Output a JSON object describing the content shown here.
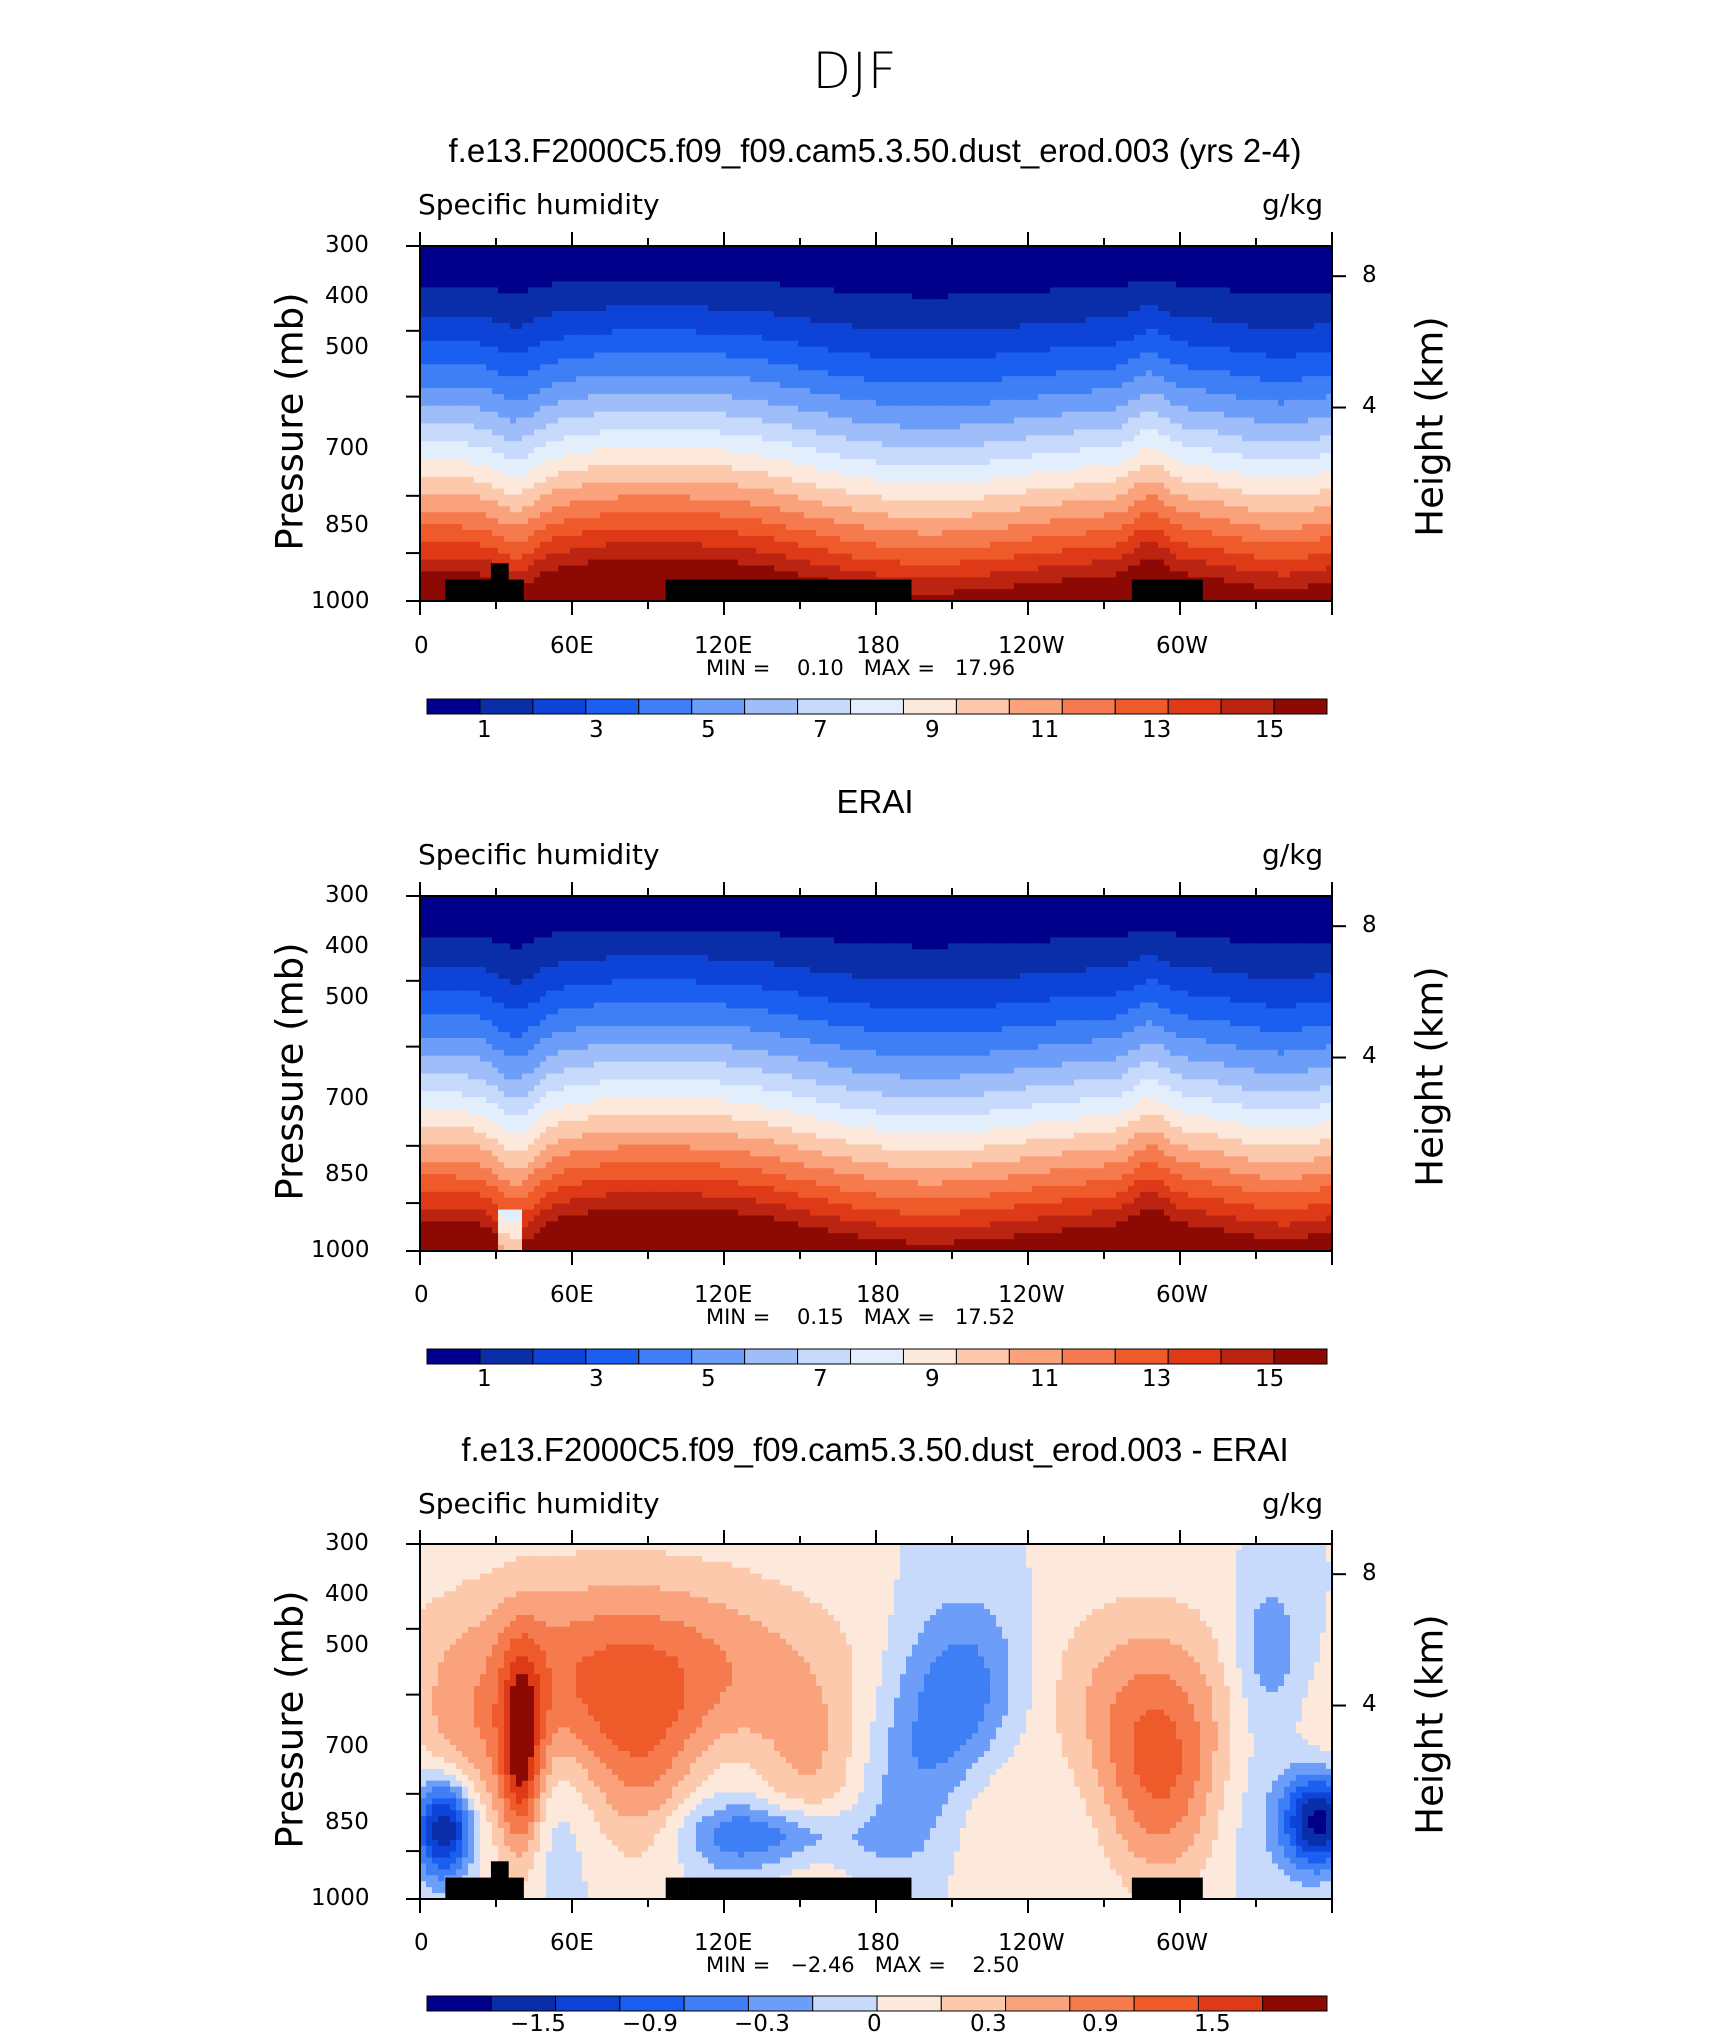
{
  "figure": {
    "title": "DJF"
  },
  "colorbar_colors": [
    "#00008b",
    "#0a2ea8",
    "#0d43d6",
    "#1b5ff0",
    "#3e7ff5",
    "#6c9df8",
    "#9ebdf9",
    "#c8dafb",
    "#e3eefd",
    "#fde9dc",
    "#fcc9ac",
    "#f9a27c",
    "#f57b4f",
    "#ef5a2b",
    "#de3a17",
    "#bb2410",
    "#8c0a03"
  ],
  "panels": [
    {
      "title": "f.e13.F2000C5.f09_f09.cam5.3.50.dust_erod.003 (yrs 2-4)",
      "left_label": "Specific humidity",
      "right_label": "g/kg",
      "y_title": "Pressure (mb)",
      "y2_title": "Height (km)",
      "pressure_ticks": [
        "300",
        "400",
        "500",
        "700",
        "850",
        "1000"
      ],
      "height_ticks": [
        "8",
        "4"
      ],
      "x_ticks": [
        "0",
        "60E",
        "120E",
        "180",
        "120W",
        "60W"
      ],
      "stats": "MIN =    0.10   MAX =   17.96",
      "colorbar_labels": [
        "1",
        "3",
        "5",
        "7",
        "9",
        "11",
        "13",
        "15"
      ]
    },
    {
      "title": "ERAI",
      "left_label": "Specific humidity",
      "right_label": "g/kg",
      "y_title": "Pressure (mb)",
      "y2_title": "Height (km)",
      "pressure_ticks": [
        "300",
        "400",
        "500",
        "700",
        "850",
        "1000"
      ],
      "height_ticks": [
        "8",
        "4"
      ],
      "x_ticks": [
        "0",
        "60E",
        "120E",
        "180",
        "120W",
        "60W"
      ],
      "stats": "MIN =    0.15   MAX =   17.52",
      "colorbar_labels": [
        "1",
        "3",
        "5",
        "7",
        "9",
        "11",
        "13",
        "15"
      ]
    },
    {
      "title": "f.e13.F2000C5.f09_f09.cam5.3.50.dust_erod.003 - ERAI",
      "left_label": "Specific humidity",
      "right_label": "g/kg",
      "y_title": "Pressure (mb)",
      "y2_title": "Height (km)",
      "pressure_ticks": [
        "300",
        "400",
        "500",
        "700",
        "850",
        "1000"
      ],
      "height_ticks": [
        "8",
        "4"
      ],
      "x_ticks": [
        "0",
        "60E",
        "120E",
        "180",
        "120W",
        "60W"
      ],
      "stats": "MIN =   −2.46   MAX =    2.50",
      "colorbar_labels": [
        "−1.5",
        "−0.9",
        "−0.3",
        "0",
        "0.3",
        "0.9",
        "1.5"
      ]
    }
  ],
  "chart_data": [
    {
      "type": "heatmap",
      "title": "f.e13.F2000C5.f09_f09.cam5.3.50.dust_erod.003 (yrs 2-4)",
      "xlabel": "",
      "ylabel": "Pressure (mb)",
      "xlim": [
        0,
        360
      ],
      "ylim": [
        1000,
        300
      ],
      "contour_levels": [
        0,
        1,
        2,
        3,
        4,
        5,
        6,
        7,
        8,
        9,
        10,
        11,
        12,
        13,
        14,
        15,
        16,
        17
      ],
      "min": 0.1,
      "max": 17.96,
      "units": "g/kg"
    },
    {
      "type": "heatmap",
      "title": "ERAI",
      "xlabel": "",
      "ylabel": "Pressure (mb)",
      "xlim": [
        0,
        360
      ],
      "ylim": [
        1000,
        300
      ],
      "contour_levels": [
        0,
        1,
        2,
        3,
        4,
        5,
        6,
        7,
        8,
        9,
        10,
        11,
        12,
        13,
        14,
        15,
        16,
        17
      ],
      "min": 0.15,
      "max": 17.52,
      "units": "g/kg"
    },
    {
      "type": "heatmap",
      "title": "f.e13.F2000C5.f09_f09.cam5.3.50.dust_erod.003 - ERAI",
      "xlabel": "",
      "ylabel": "Pressure (mb)",
      "xlim": [
        0,
        360
      ],
      "ylim": [
        1000,
        300
      ],
      "contour_levels": [
        -1.8,
        -1.5,
        -1.2,
        -0.9,
        -0.6,
        -0.3,
        0,
        0.3,
        0.6,
        0.9,
        1.2,
        1.5,
        1.8
      ],
      "min": -2.46,
      "max": 2.5,
      "units": "g/kg"
    }
  ]
}
